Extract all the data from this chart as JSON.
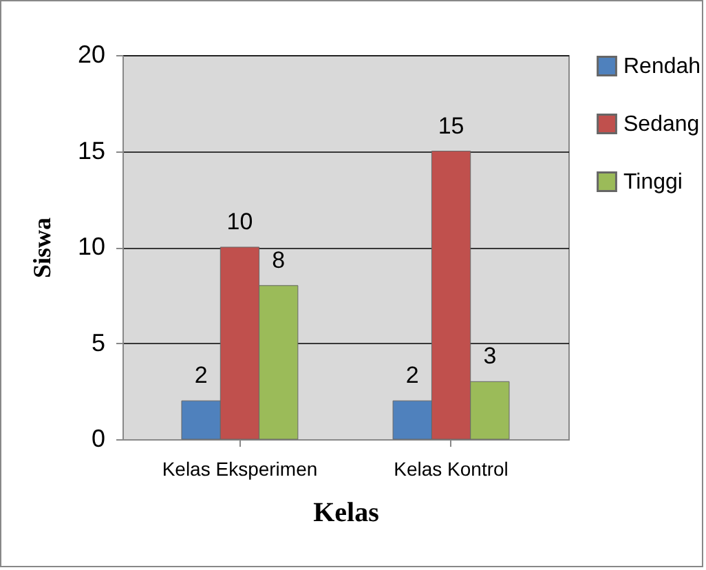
{
  "chart_data": {
    "type": "bar",
    "xlabel": "Kelas",
    "ylabel": "Siswa",
    "categories": [
      "Kelas Eksperimen",
      "Kelas Kontrol"
    ],
    "series": [
      {
        "name": "Rendah",
        "color": "#4f81bd",
        "values": [
          2,
          2
        ]
      },
      {
        "name": "Sedang",
        "color": "#c0504d",
        "values": [
          10,
          15
        ]
      },
      {
        "name": "Tinggi",
        "color": "#9bbb59",
        "values": [
          8,
          3
        ]
      }
    ],
    "ylim": [
      0,
      20
    ],
    "yticks": [
      0,
      5,
      10,
      15,
      20
    ],
    "grid": "y",
    "legend": "right",
    "data_labels": true
  }
}
